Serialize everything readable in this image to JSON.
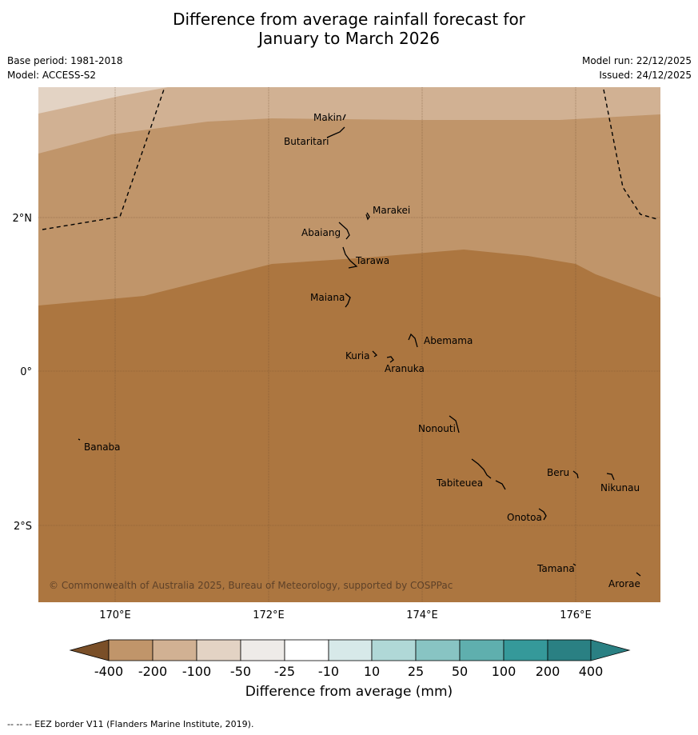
{
  "title_line1": "Difference from average rainfall forecast for",
  "title_line2": "January to March 2026",
  "base_period": "Base period: 1981-2018",
  "model": "Model: ACCESS-S2",
  "model_run": "Model run: 22/12/2025",
  "issued": "Issued: 24/12/2025",
  "copyright": "© Commonwealth of Australia 2025, Bureau of Meteorology, supported by COSPPac",
  "lat_labels": [
    "2°N",
    "0°",
    "2°S"
  ],
  "lon_labels": [
    "170°E",
    "172°E",
    "174°E",
    "176°E"
  ],
  "islands": [
    "Makin",
    "Butaritari",
    "Marakei",
    "Abaiang",
    "Tarawa",
    "Maiana",
    "Abemama",
    "Kuria",
    "Aranuka",
    "Nonouti",
    "Banaba",
    "Beru",
    "Nikunau",
    "Tabiteuea",
    "Onotoa",
    "Tamana",
    "Arorae"
  ],
  "legend": {
    "ticks": [
      "-400",
      "-200",
      "-100",
      "-50",
      "-25",
      "-10",
      "10",
      "25",
      "50",
      "100",
      "200",
      "400"
    ],
    "colors": [
      "#ac7640",
      "#c0956a",
      "#d1b193",
      "#e3d3c4",
      "#eeebe8",
      "#ffffff",
      "#d7e9e9",
      "#b0d8d7",
      "#88c4c3",
      "#5fafae",
      "#35999a",
      "#2a8083",
      "#7a4f28"
    ],
    "title": "Difference from average (mm)"
  },
  "footnote": "--  --  -- EEZ border V11 (Flanders Marine Institute, 2019)."
}
